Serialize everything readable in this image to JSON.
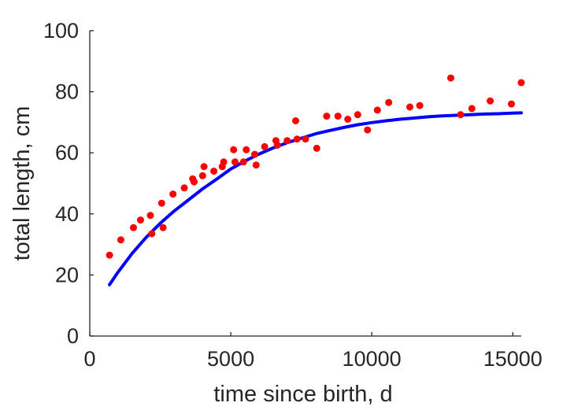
{
  "chart_data": {
    "type": "scatter",
    "title": "",
    "xlabel": "time since birth, d",
    "ylabel": "total length, cm",
    "xlim": [
      0,
      15300
    ],
    "ylim": [
      0,
      100
    ],
    "xticks": [
      0,
      5000,
      10000,
      15000
    ],
    "yticks": [
      0,
      20,
      40,
      60,
      80,
      100
    ],
    "grid": false,
    "colors": {
      "points": "#ff0000",
      "fit": "#0000ff",
      "axis": "#262626"
    },
    "series": [
      {
        "kind": "points",
        "x": [
          700,
          1100,
          1550,
          1800,
          2150,
          2200,
          2550,
          2600,
          2950,
          3350,
          3650,
          3700,
          4000,
          4050,
          4400,
          4700,
          4750,
          5100,
          5150,
          5450,
          5550,
          5850,
          5900,
          6200,
          6600,
          6650,
          7000,
          7300,
          7350,
          7650,
          8050,
          8400,
          8800,
          9150,
          9500,
          9850,
          10200,
          10600,
          11350,
          11700,
          12800,
          13150,
          13550,
          14200,
          14950,
          15300
        ],
        "y": [
          26.5,
          31.5,
          35.5,
          38,
          39.5,
          33.5,
          43.5,
          35.5,
          46.5,
          48.5,
          51.5,
          50.5,
          52.5,
          55.5,
          54,
          55.5,
          57,
          61,
          57,
          57,
          61,
          59.5,
          56,
          62,
          64,
          62.5,
          64,
          70.5,
          64.5,
          64.5,
          61.5,
          72,
          72,
          71,
          72.5,
          67.5,
          74,
          76.5,
          75,
          75.5,
          84.5,
          72.5,
          74.5,
          77,
          76,
          83
        ]
      },
      {
        "kind": "fit-line",
        "x": [
          700,
          1000,
          1500,
          2000,
          2500,
          3000,
          3500,
          4000,
          4500,
          5000,
          5500,
          6000,
          6500,
          7000,
          7500,
          8000,
          8500,
          9000,
          9500,
          10000,
          10500,
          11000,
          11500,
          12000,
          12500,
          13000,
          13500,
          14000,
          14500,
          15000,
          15300
        ],
        "y": [
          16.8,
          20.9,
          27.0,
          32.3,
          36.9,
          41.0,
          44.6,
          48.2,
          51.4,
          54.7,
          57.3,
          59.6,
          61.6,
          63.3,
          64.8,
          66.2,
          67.3,
          68.3,
          69.2,
          69.9,
          70.5,
          71.0,
          71.4,
          71.8,
          72.1,
          72.3,
          72.5,
          72.7,
          72.8,
          73.0,
          73.1
        ]
      }
    ]
  }
}
